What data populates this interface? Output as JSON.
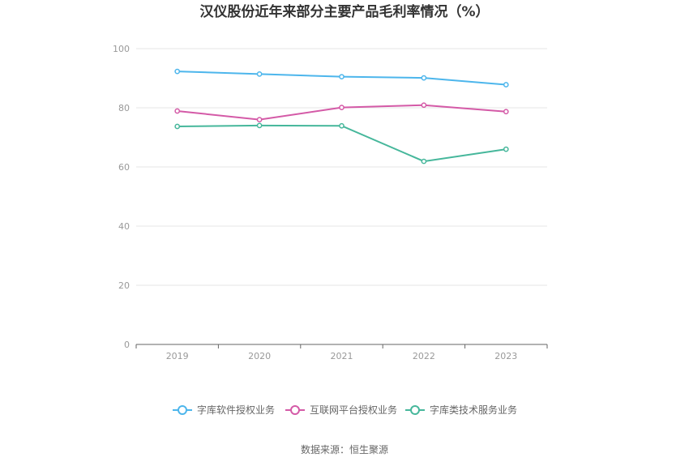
{
  "chart_data": {
    "type": "line",
    "title": "汉仪股份近年来部分主要产品毛利率情况（%）",
    "categories": [
      "2019",
      "2020",
      "2021",
      "2022",
      "2023"
    ],
    "ylim": [
      0,
      100
    ],
    "yticks": [
      "0",
      "20",
      "40",
      "60",
      "80",
      "100"
    ],
    "grid": true,
    "legend_position": "bottom",
    "series": [
      {
        "name": "字库软件授权业务",
        "color": "#4db6ec",
        "values": [
          92.3,
          91.4,
          90.5,
          90.1,
          87.8
        ]
      },
      {
        "name": "互联网平台授权业务",
        "color": "#d45aa7",
        "values": [
          78.9,
          76.0,
          80.1,
          80.9,
          78.7
        ]
      },
      {
        "name": "字库类技术服务业务",
        "color": "#46b79b",
        "values": [
          73.7,
          74.0,
          73.9,
          61.9,
          66.0
        ]
      }
    ]
  },
  "source_text": "数据来源：恒生聚源"
}
